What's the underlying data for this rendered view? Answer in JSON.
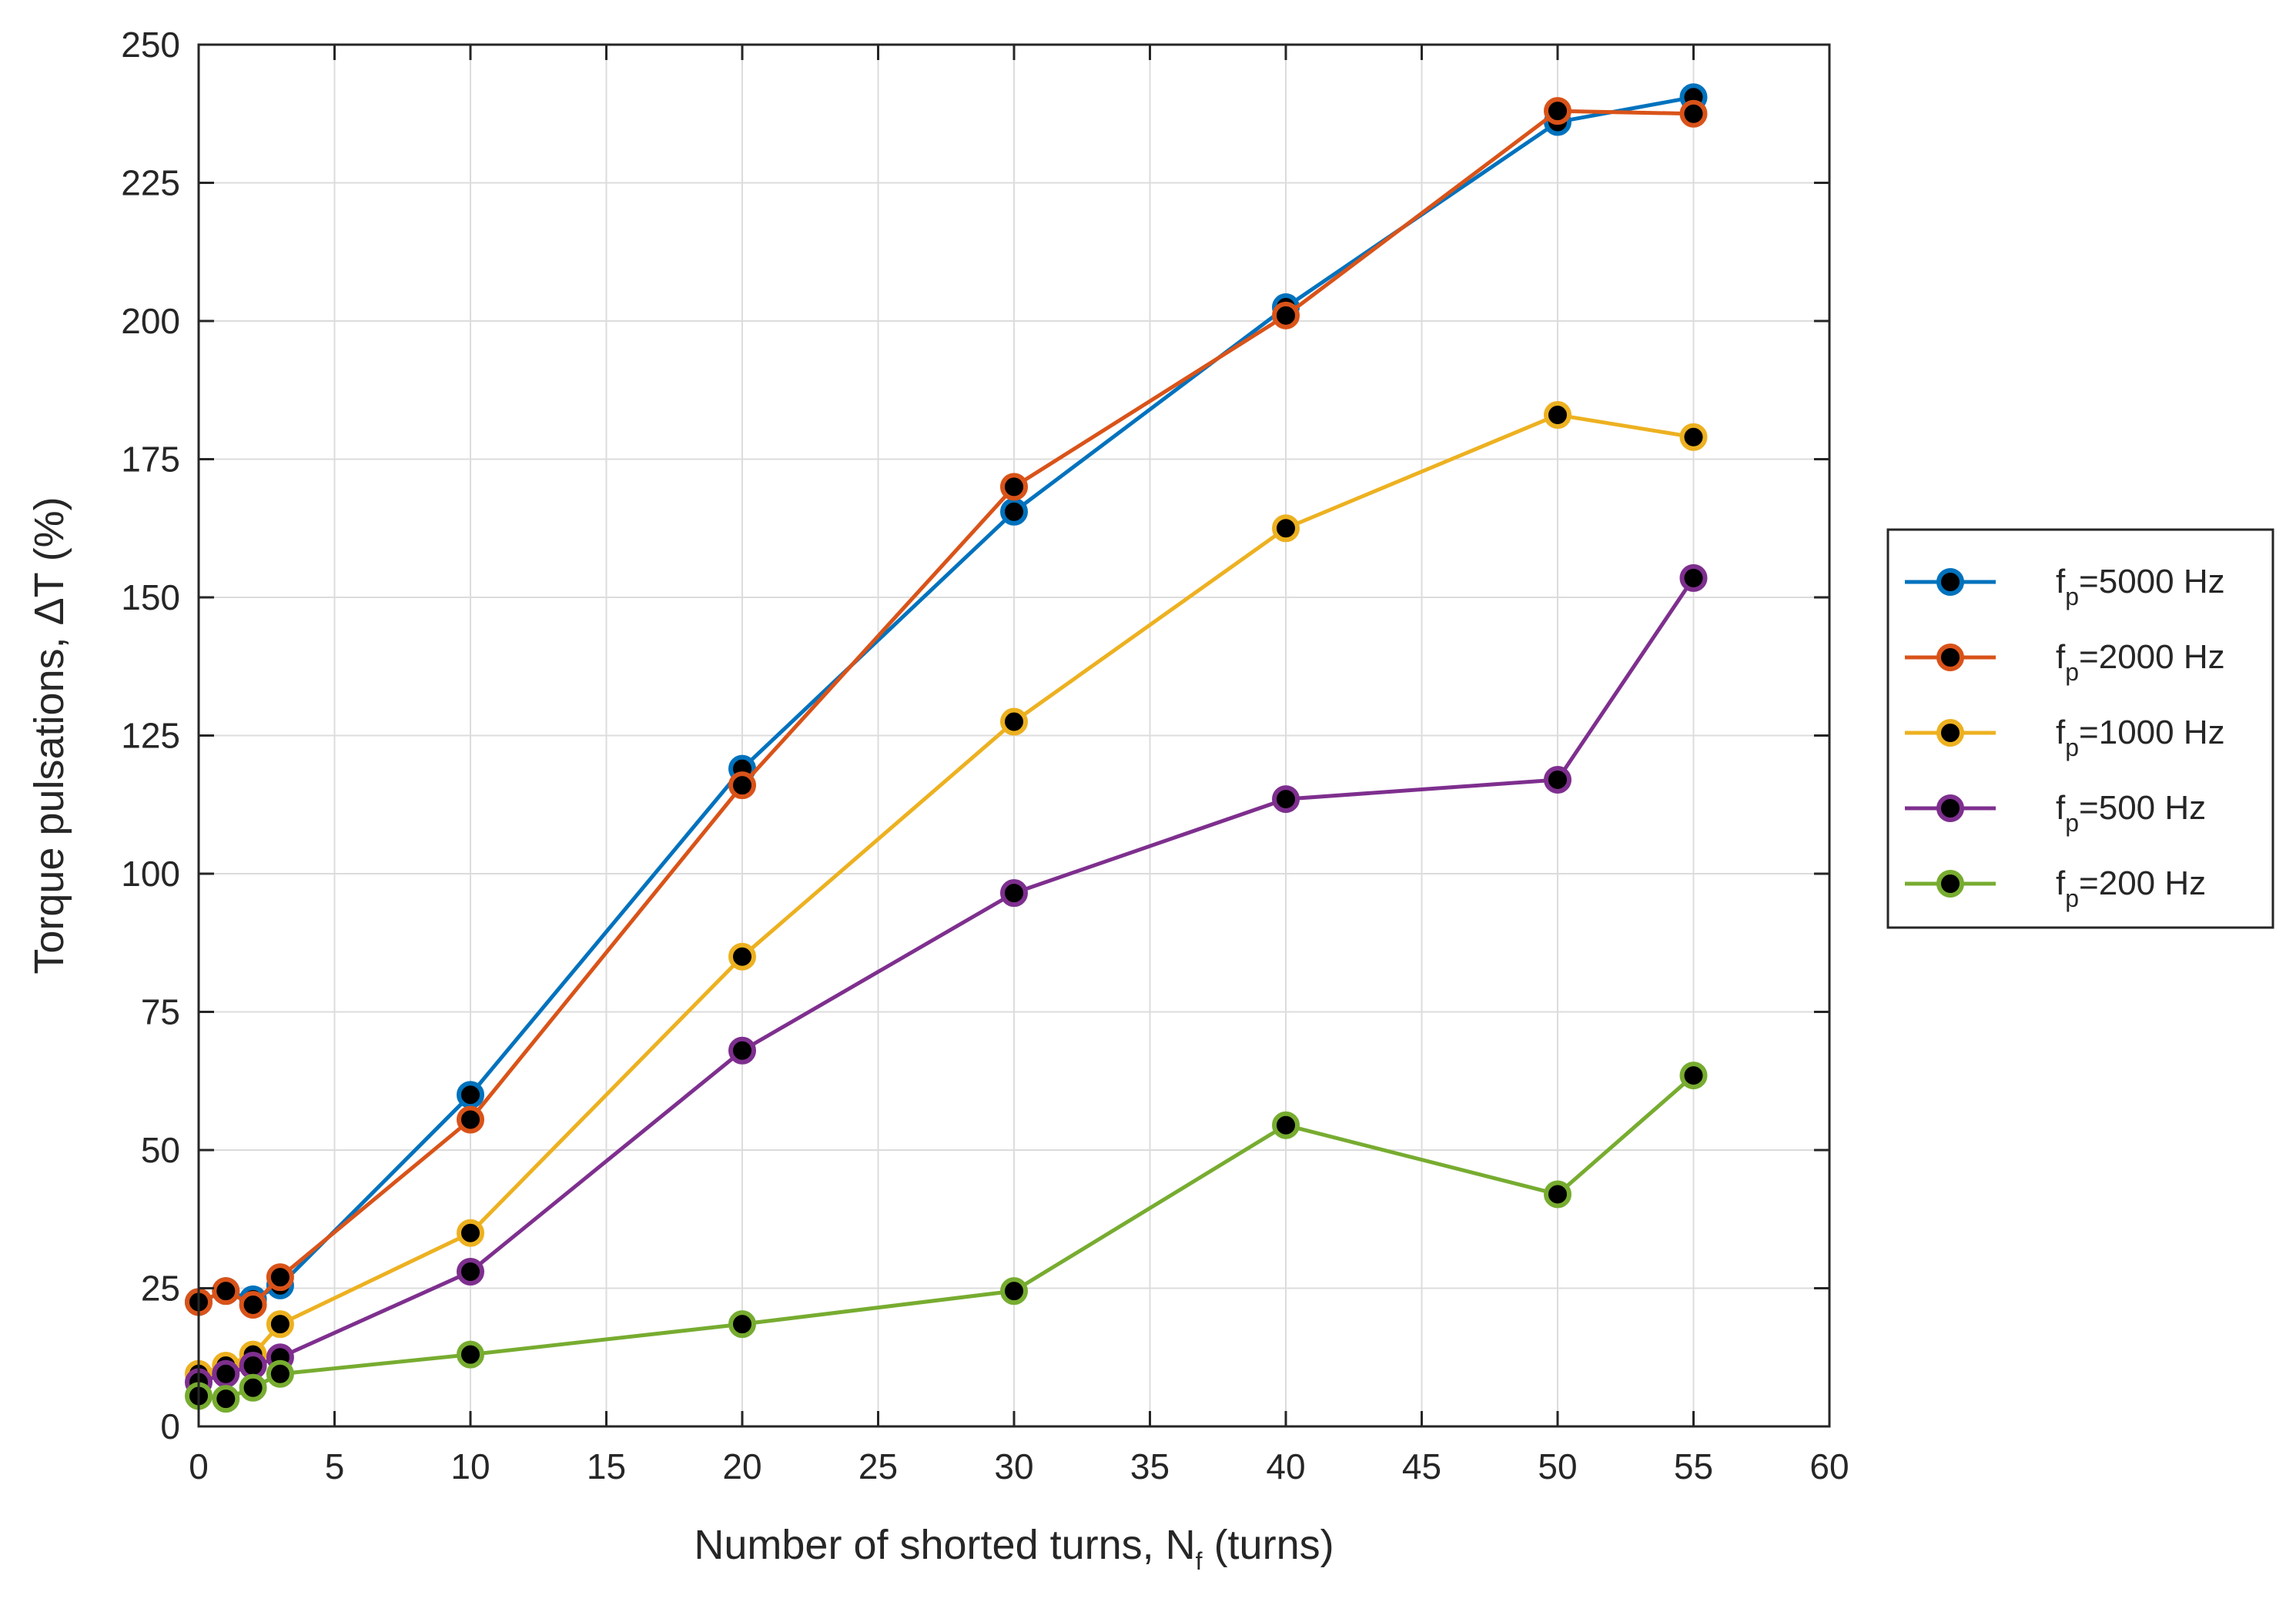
{
  "chart_data": {
    "type": "line",
    "title": "",
    "xlabel": {
      "main": "Number of shorted turns, N",
      "sub": "f",
      "suffix": " (turns)"
    },
    "ylabel": "Torque pulsations,  ΔT (%)",
    "xlim": [
      0,
      60
    ],
    "ylim": [
      0,
      250
    ],
    "xticks": [
      0,
      5,
      10,
      15,
      20,
      25,
      30,
      35,
      40,
      45,
      50,
      55,
      60
    ],
    "yticks": [
      0,
      25,
      50,
      75,
      100,
      125,
      150,
      175,
      200,
      225,
      250
    ],
    "grid": true,
    "legend_position": "outside-right",
    "x": [
      0,
      1,
      2,
      3,
      10,
      20,
      30,
      40,
      50,
      55
    ],
    "series": [
      {
        "name": "f_p=5000 Hz",
        "label_main": "f",
        "label_sub": "p",
        "label_rest": "=5000 Hz",
        "color": "#0072BD",
        "values": [
          22.5,
          24.5,
          23.0,
          25.5,
          60.0,
          119.0,
          165.5,
          202.5,
          236.0,
          240.5
        ]
      },
      {
        "name": "f_p=2000 Hz",
        "label_main": "f",
        "label_sub": "p",
        "label_rest": "=2000 Hz",
        "color": "#D95319",
        "values": [
          22.5,
          24.5,
          22.0,
          27.0,
          55.5,
          116.0,
          170.0,
          201.0,
          238.0,
          237.5
        ]
      },
      {
        "name": "f_p=1000 Hz",
        "label_main": "f",
        "label_sub": "p",
        "label_rest": "=1000 Hz",
        "color": "#EDB120",
        "values": [
          9.5,
          11.0,
          13.0,
          18.5,
          35.0,
          85.0,
          127.5,
          162.5,
          183.0,
          179.0
        ]
      },
      {
        "name": "f_p=500 Hz",
        "label_main": "f",
        "label_sub": "p",
        "label_rest": "=500 Hz",
        "color": "#7E2F8E",
        "values": [
          8.0,
          9.5,
          11.0,
          12.5,
          28.0,
          68.0,
          96.5,
          113.5,
          117.0,
          153.5
        ]
      },
      {
        "name": "f_p=200 Hz",
        "label_main": "f",
        "label_sub": "p",
        "label_rest": "=200 Hz",
        "color": "#77AC30",
        "values": [
          5.5,
          5.0,
          7.0,
          9.5,
          13.0,
          18.5,
          24.5,
          54.5,
          42.0,
          63.5
        ]
      }
    ],
    "marker_fill": "#000000",
    "axis_color": "#262626",
    "grid_color": "#dcdcdc"
  }
}
